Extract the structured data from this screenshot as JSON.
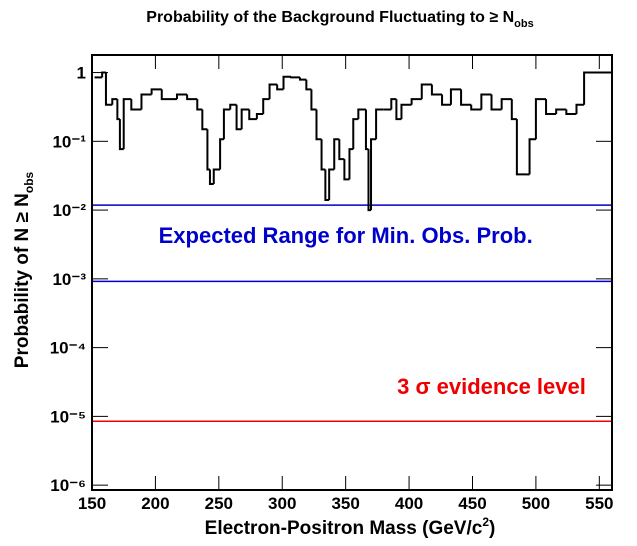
{
  "chart_data": {
    "type": "histogram",
    "title": {
      "text": "Probability of the Background Fluctuating to ≥ N",
      "sub": "obs"
    },
    "x_label": {
      "text": "Electron-Positron Mass (GeV/c",
      "sup": "2",
      "tail": ")"
    },
    "y_label": {
      "text": "Probability of N ≥ N",
      "sub": "obs"
    },
    "color": "#000000",
    "bins": [
      152,
      158,
      161,
      166,
      170,
      172,
      175,
      181,
      189,
      197,
      205,
      217,
      225,
      233,
      237,
      241,
      243,
      246,
      251,
      254,
      259,
      264,
      268,
      274,
      280,
      285,
      290,
      296,
      301,
      307,
      314,
      319,
      323,
      327,
      331,
      334,
      337,
      341,
      345,
      349,
      353,
      356,
      360,
      366,
      368,
      370,
      374,
      380,
      386,
      390,
      394,
      402,
      410,
      418,
      426,
      433,
      441,
      449,
      457,
      465,
      473,
      481,
      485,
      493,
      495,
      500,
      508,
      516,
      524,
      532,
      538,
      560
    ],
    "values": [
      0.85,
      1,
      0.34,
      0.41,
      0.21,
      0.077,
      0.41,
      0.29,
      0.48,
      0.57,
      0.41,
      0.48,
      0.41,
      0.29,
      0.15,
      0.039,
      0.024,
      0.039,
      0.107,
      0.29,
      0.34,
      0.15,
      0.29,
      0.21,
      0.25,
      0.41,
      0.67,
      0.57,
      0.87,
      0.85,
      0.79,
      0.57,
      0.29,
      0.107,
      0.039,
      0.014,
      0.039,
      0.107,
      0.055,
      0.028,
      0.077,
      0.21,
      0.29,
      0.077,
      0.01,
      0.107,
      0.29,
      0.29,
      0.41,
      0.21,
      0.34,
      0.41,
      0.67,
      0.48,
      0.34,
      0.57,
      0.34,
      0.29,
      0.48,
      0.29,
      0.41,
      0.21,
      0.033,
      0.033,
      0.107,
      0.41,
      0.25,
      0.29,
      0.25,
      0.34,
      1
    ],
    "xlim": [
      150,
      560
    ],
    "xticks": [
      150,
      200,
      250,
      300,
      350,
      400,
      450,
      500,
      550
    ],
    "ylim": [
      8.5e-07,
      1.8
    ],
    "log_y": true,
    "yticks": [
      {
        "value": 1e-06,
        "label": "10⁻⁶"
      },
      {
        "value": 1e-05,
        "label": "10⁻⁵"
      },
      {
        "value": 0.0001,
        "label": "10⁻⁴"
      },
      {
        "value": 0.001,
        "label": "10⁻³"
      },
      {
        "value": 0.01,
        "label": "10⁻²"
      },
      {
        "value": 0.1,
        "label": "10⁻¹"
      },
      1
    ],
    "reference_lines": [
      {
        "value": 0.0118,
        "color": "#0000cc"
      },
      {
        "value": 0.00092,
        "color": "#0000cc"
      },
      {
        "value": 8.5e-06,
        "color": "#ee0000"
      }
    ],
    "annotations": [
      {
        "text": "Expected Range for Min. Obs. Prob.",
        "color": "#0000cc",
        "x": 350,
        "y": 0.0033
      },
      {
        "text": "3 σ evidence level",
        "color": "#ee0000",
        "x": 465,
        "y": 2.1e-05
      }
    ]
  }
}
